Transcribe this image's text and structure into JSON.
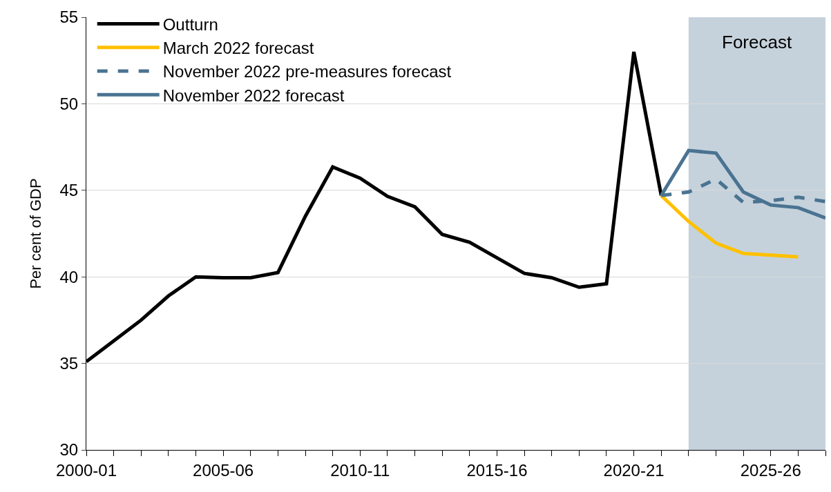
{
  "chart_data": {
    "type": "line",
    "ylabel": "Per cent of GDP",
    "categories": [
      "2000-01",
      null,
      null,
      null,
      null,
      "2005-06",
      null,
      null,
      null,
      null,
      "2010-11",
      null,
      null,
      null,
      null,
      "2015-16",
      null,
      null,
      null,
      null,
      "2020-21",
      null,
      null,
      null,
      null,
      "2025-26",
      null,
      null
    ],
    "series": [
      {
        "name": "Outturn",
        "color": "#000000",
        "values": [
          35.1,
          36.3,
          37.5,
          38.9,
          40.0,
          39.95,
          39.95,
          40.25,
          43.5,
          46.35,
          45.7,
          44.65,
          44.05,
          42.45,
          42.0,
          41.1,
          40.2,
          39.95,
          39.4,
          39.6,
          53.0,
          44.7,
          null,
          null,
          null,
          null,
          null,
          null
        ]
      },
      {
        "name": "March 2022 forecast",
        "color": "#ffc000",
        "values": [
          null,
          null,
          null,
          null,
          null,
          null,
          null,
          null,
          null,
          null,
          null,
          null,
          null,
          null,
          null,
          null,
          null,
          null,
          null,
          null,
          null,
          44.7,
          43.2,
          41.95,
          41.35,
          41.25,
          41.15,
          null
        ]
      },
      {
        "name": "November 2022 pre-measures forecast",
        "color": "#4a7391",
        "line_style": "dashed",
        "values": [
          null,
          null,
          null,
          null,
          null,
          null,
          null,
          null,
          null,
          null,
          null,
          null,
          null,
          null,
          null,
          null,
          null,
          null,
          null,
          null,
          null,
          44.7,
          44.9,
          45.65,
          44.3,
          44.4,
          44.6,
          44.35
        ]
      },
      {
        "name": "November 2022 forecast",
        "color": "#4a7391",
        "values": [
          null,
          null,
          null,
          null,
          null,
          null,
          null,
          null,
          null,
          null,
          null,
          null,
          null,
          null,
          null,
          null,
          null,
          null,
          null,
          null,
          null,
          44.7,
          47.3,
          47.15,
          44.9,
          44.15,
          44.0,
          43.4
        ]
      }
    ],
    "ylim": [
      30,
      55
    ],
    "yticks": [
      30,
      35,
      40,
      45,
      50,
      55
    ],
    "grid": "y",
    "legend": "top left",
    "line_style": "solid",
    "marker": "none",
    "annotations": [
      "Forecast"
    ]
  }
}
